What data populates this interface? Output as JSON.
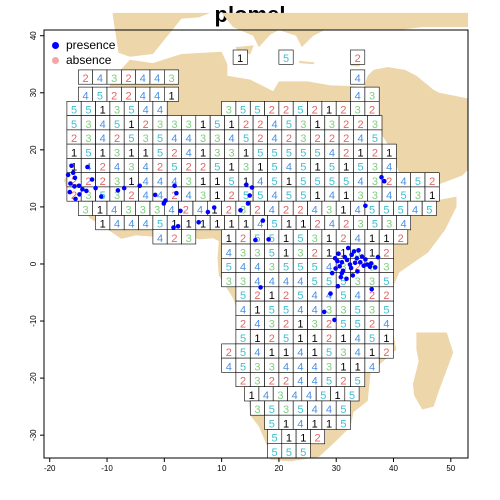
{
  "title": "plomel",
  "legend": {
    "presence_label": "presence",
    "absence_label": "absence",
    "presence_color": "#0000ff",
    "absence_color": "#f4a6a6"
  },
  "axes": {
    "x_ticks": [
      "-20",
      "-10",
      "0",
      "10",
      "20",
      "30",
      "40",
      "50"
    ],
    "y_ticks": [
      "-30",
      "-20",
      "-10",
      "0",
      "10",
      "20",
      "30",
      "40"
    ]
  },
  "colors": {
    "land": "#ecd6aa",
    "cell_fill": "#ffffff",
    "cell_border": "#000000",
    "digit_1": "#000000",
    "digit_2": "#e06666",
    "digit_3": "#7fcf7f",
    "digit_4": "#4a90e2",
    "digit_5": "#3fbfcf"
  },
  "chart_data": {
    "type": "scatter",
    "title": "plomel",
    "xlim": [
      -21,
      53
    ],
    "ylim": [
      -34,
      41
    ],
    "x_ticks": [
      -20,
      -10,
      0,
      10,
      20,
      30,
      40,
      50
    ],
    "y_ticks": [
      -30,
      -20,
      -10,
      0,
      10,
      20,
      30,
      40
    ],
    "series": [
      {
        "name": "presence",
        "color": "#0000ff",
        "points": [
          [
            -16.2,
            17.2
          ],
          [
            -15.9,
            16.0
          ],
          [
            -15.6,
            15.1
          ],
          [
            -16.4,
            14.1
          ],
          [
            -15.7,
            13.6
          ],
          [
            -14.9,
            13.7
          ],
          [
            -14.3,
            13.1
          ],
          [
            -13.6,
            12.8
          ],
          [
            -14.8,
            12.2
          ],
          [
            -15.5,
            11.4
          ],
          [
            -16.5,
            12.6
          ],
          [
            -16.8,
            15.6
          ],
          [
            -13.4,
            17.0
          ],
          [
            -12.6,
            14.8
          ],
          [
            -12.0,
            13.3
          ],
          [
            -11.0,
            11.8
          ],
          [
            -8.1,
            12.9
          ],
          [
            -7.0,
            13.3
          ],
          [
            -4.3,
            13.7
          ],
          [
            -1.6,
            12.1
          ],
          [
            -0.1,
            10.6
          ],
          [
            0.2,
            11.1
          ],
          [
            1.8,
            13.7
          ],
          [
            2.1,
            12.4
          ],
          [
            2.8,
            9.3
          ],
          [
            1.6,
            6.4
          ],
          [
            2.4,
            6.6
          ],
          [
            6.0,
            7.3
          ],
          [
            7.6,
            9.1
          ],
          [
            8.7,
            9.9
          ],
          [
            13.3,
            9.4
          ],
          [
            14.6,
            10.6
          ],
          [
            14.9,
            12.0
          ],
          [
            15.3,
            13.4
          ],
          [
            14.3,
            13.9
          ],
          [
            15.9,
            4.2
          ],
          [
            17.2,
            7.6
          ],
          [
            18.2,
            4.3
          ],
          [
            16.8,
            -4.1
          ],
          [
            29.0,
            -5.2
          ],
          [
            27.9,
            -8.4
          ],
          [
            29.7,
            -9.8
          ],
          [
            30.3,
            -3.9
          ],
          [
            30.8,
            -2.3
          ],
          [
            29.3,
            -1.6
          ],
          [
            29.9,
            -0.8
          ],
          [
            30.6,
            -0.4
          ],
          [
            31.0,
            0.3
          ],
          [
            31.5,
            1.2
          ],
          [
            31.9,
            0.7
          ],
          [
            32.4,
            -0.1
          ],
          [
            32.7,
            1.6
          ],
          [
            33.1,
            2.2
          ],
          [
            33.6,
            1.0
          ],
          [
            34.2,
            0.3
          ],
          [
            34.8,
            -0.3
          ],
          [
            35.4,
            -0.1
          ],
          [
            35.9,
            -0.5
          ],
          [
            33.7,
            -1.3
          ],
          [
            32.9,
            -2.0
          ],
          [
            31.8,
            -2.6
          ],
          [
            31.2,
            -1.2
          ],
          [
            30.4,
            1.8
          ],
          [
            32.1,
            2.8
          ],
          [
            33.9,
            2.4
          ],
          [
            34.5,
            1.3
          ],
          [
            35.1,
            0.8
          ],
          [
            36.1,
            0.1
          ],
          [
            36.8,
            -0.6
          ],
          [
            37.3,
            1.2
          ],
          [
            37.9,
            15.2
          ],
          [
            38.4,
            14.5
          ],
          [
            35.1,
            10.2
          ],
          [
            36.2,
            -4.4
          ],
          [
            29.8,
            1.0
          ],
          [
            30.2,
            0.5
          ],
          [
            31.0,
            -1.6
          ],
          [
            32.6,
            -0.7
          ],
          [
            33.3,
            0.2
          ]
        ]
      }
    ],
    "grid_note": "grid of 2.5-degree cells over Africa showing numeric codes 1-5 (rendered procedurally)"
  }
}
